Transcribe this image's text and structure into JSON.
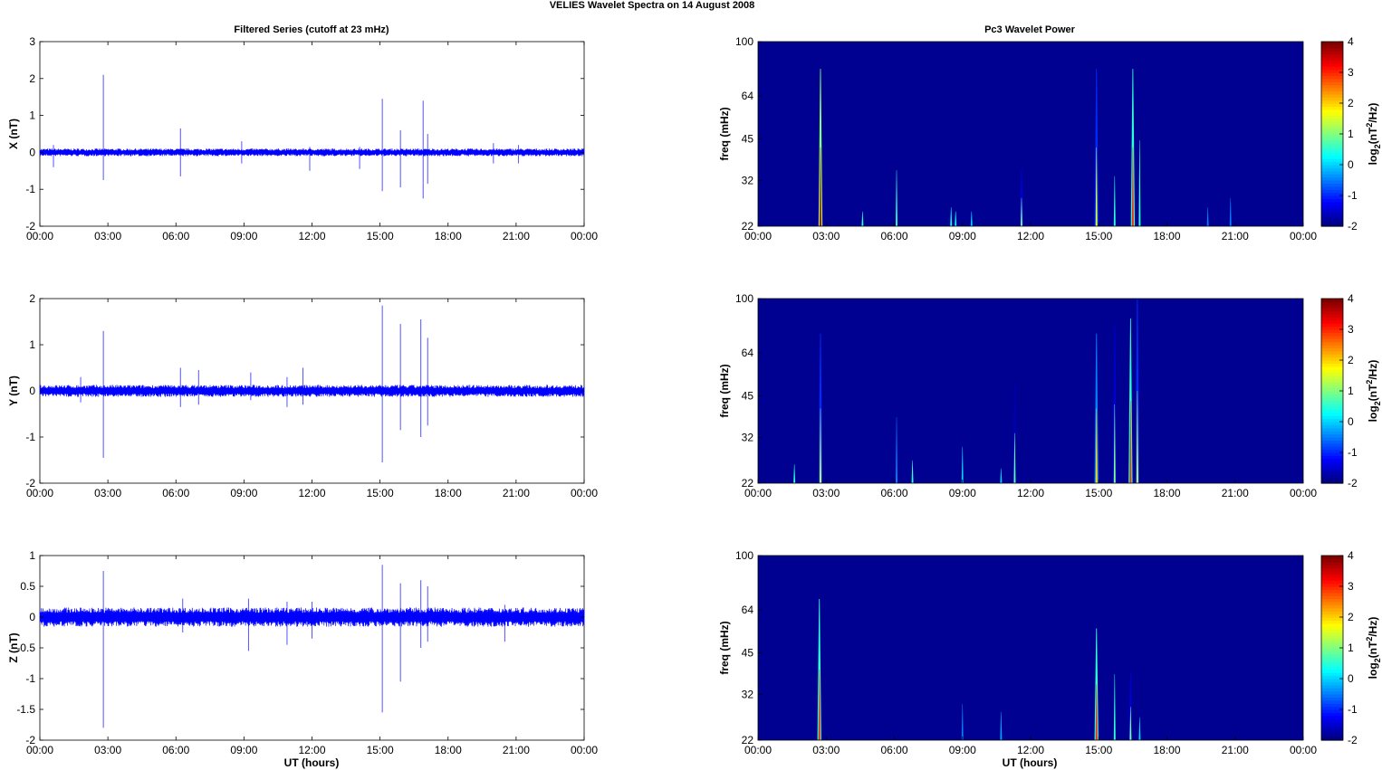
{
  "figure": {
    "title": "VELIES Wavelet Spectra on 14 August    2008",
    "left_title": "Filtered Series (cutoff at 23 mHz)",
    "right_title": "Pc3 Wavelet Power",
    "xlabel": "UT (hours)"
  },
  "chart_data": [
    {
      "type": "line",
      "panel": "X",
      "ylabel": "X (nT)",
      "ylim": [
        -2,
        3
      ],
      "yticks": [
        "-2",
        "-1",
        "0",
        "1",
        "2",
        "3"
      ],
      "xticks": [
        "00:00",
        "03:00",
        "06:00",
        "09:00",
        "12:00",
        "15:00",
        "18:00",
        "21:00",
        "00:00"
      ],
      "xlim_hours": [
        0,
        24
      ],
      "noise_amplitude": 0.08,
      "series_color": "#0000ff",
      "spikes": [
        {
          "t": 2.8,
          "hi": 2.1,
          "lo": -0.75
        },
        {
          "t": 6.2,
          "hi": 0.65,
          "lo": -0.65
        },
        {
          "t": 0.6,
          "hi": 0.2,
          "lo": -0.4
        },
        {
          "t": 11.9,
          "hi": 0.15,
          "lo": -0.5
        },
        {
          "t": 14.1,
          "hi": 0.15,
          "lo": -0.45
        },
        {
          "t": 15.1,
          "hi": 1.45,
          "lo": -1.05
        },
        {
          "t": 15.9,
          "hi": 0.6,
          "lo": -0.95
        },
        {
          "t": 16.9,
          "hi": 1.4,
          "lo": -1.25
        },
        {
          "t": 17.1,
          "hi": 0.5,
          "lo": -0.85
        },
        {
          "t": 20.0,
          "hi": 0.25,
          "lo": -0.3
        },
        {
          "t": 21.1,
          "hi": 0.2,
          "lo": -0.3
        },
        {
          "t": 8.9,
          "hi": 0.3,
          "lo": -0.3
        }
      ]
    },
    {
      "type": "line",
      "panel": "Y",
      "ylabel": "Y (nT)",
      "ylim": [
        -2,
        2
      ],
      "yticks": [
        "-2",
        "-1",
        "0",
        "1",
        "2"
      ],
      "xticks": [
        "00:00",
        "03:00",
        "06:00",
        "09:00",
        "12:00",
        "15:00",
        "18:00",
        "21:00",
        "00:00"
      ],
      "xlim_hours": [
        0,
        24
      ],
      "noise_amplitude": 0.1,
      "series_color": "#0000ff",
      "spikes": [
        {
          "t": 2.8,
          "hi": 1.3,
          "lo": -1.45
        },
        {
          "t": 6.2,
          "hi": 0.5,
          "lo": -0.35
        },
        {
          "t": 7.0,
          "hi": 0.45,
          "lo": -0.3
        },
        {
          "t": 9.3,
          "hi": 0.4,
          "lo": -0.2
        },
        {
          "t": 10.9,
          "hi": 0.3,
          "lo": -0.35
        },
        {
          "t": 11.6,
          "hi": 0.5,
          "lo": -0.3
        },
        {
          "t": 15.1,
          "hi": 1.85,
          "lo": -1.55
        },
        {
          "t": 15.9,
          "hi": 1.45,
          "lo": -0.85
        },
        {
          "t": 16.8,
          "hi": 1.55,
          "lo": -1.0
        },
        {
          "t": 17.1,
          "hi": 1.15,
          "lo": -0.75
        },
        {
          "t": 1.8,
          "hi": 0.3,
          "lo": -0.25
        }
      ]
    },
    {
      "type": "line",
      "panel": "Z",
      "ylabel": "Z (nT)",
      "ylim": [
        -2,
        1
      ],
      "yticks": [
        "-2",
        "-1.5",
        "-1",
        "-0.5",
        "0",
        "0.5",
        "1"
      ],
      "xticks": [
        "00:00",
        "03:00",
        "06:00",
        "09:00",
        "12:00",
        "15:00",
        "18:00",
        "21:00",
        "00:00"
      ],
      "xlim_hours": [
        0,
        24
      ],
      "noise_amplitude": 0.12,
      "series_color": "#0000ff",
      "spikes": [
        {
          "t": 2.8,
          "hi": 0.75,
          "lo": -1.8
        },
        {
          "t": 6.3,
          "hi": 0.3,
          "lo": -0.25
        },
        {
          "t": 9.2,
          "hi": 0.3,
          "lo": -0.55
        },
        {
          "t": 10.9,
          "hi": 0.25,
          "lo": -0.45
        },
        {
          "t": 12.0,
          "hi": 0.25,
          "lo": -0.35
        },
        {
          "t": 15.1,
          "hi": 0.85,
          "lo": -1.55
        },
        {
          "t": 15.9,
          "hi": 0.55,
          "lo": -1.05
        },
        {
          "t": 16.8,
          "hi": 0.6,
          "lo": -0.5
        },
        {
          "t": 17.1,
          "hi": 0.5,
          "lo": -0.4
        },
        {
          "t": 20.5,
          "hi": 0.2,
          "lo": -0.4
        }
      ]
    },
    {
      "type": "heatmap",
      "panel": "X-power",
      "ylabel": "freq (mHz)",
      "yticks": [
        "22",
        "32",
        "45",
        "64",
        "100"
      ],
      "xticks": [
        "00:00",
        "03:00",
        "06:00",
        "09:00",
        "12:00",
        "15:00",
        "18:00",
        "21:00",
        "00:00"
      ],
      "xlim_hours": [
        0,
        24
      ],
      "ylim_mHz": [
        22,
        100
      ],
      "background_level": -1.9,
      "events": [
        {
          "t": 2.75,
          "fmax": 80,
          "peak": 3.5
        },
        {
          "t": 4.6,
          "fmax": 28,
          "peak": 0.5
        },
        {
          "t": 6.1,
          "fmax": 55,
          "peak": 0.5
        },
        {
          "t": 8.5,
          "fmax": 30,
          "peak": 0.3
        },
        {
          "t": 8.7,
          "fmax": 28,
          "peak": 0.3
        },
        {
          "t": 9.4,
          "fmax": 28,
          "peak": 0.0
        },
        {
          "t": 11.6,
          "fmax": 35,
          "peak": 1.0
        },
        {
          "t": 14.9,
          "fmax": 80,
          "peak": 1.5
        },
        {
          "t": 15.7,
          "fmax": 50,
          "peak": 0.5
        },
        {
          "t": 16.5,
          "fmax": 80,
          "peak": 3.0
        },
        {
          "t": 16.8,
          "fmax": 90,
          "peak": 0.5
        },
        {
          "t": 19.8,
          "fmax": 30,
          "peak": -0.5
        },
        {
          "t": 20.8,
          "fmax": 35,
          "peak": -0.5
        }
      ]
    },
    {
      "type": "heatmap",
      "panel": "Y-power",
      "ylabel": "freq (mHz)",
      "yticks": [
        "22",
        "32",
        "45",
        "64",
        "100"
      ],
      "xticks": [
        "00:00",
        "03:00",
        "06:00",
        "09:00",
        "12:00",
        "15:00",
        "18:00",
        "21:00",
        "00:00"
      ],
      "xlim_hours": [
        0,
        24
      ],
      "ylim_mHz": [
        22,
        100
      ],
      "background_level": -1.9,
      "events": [
        {
          "t": 1.6,
          "fmax": 30,
          "peak": 0.5
        },
        {
          "t": 2.75,
          "fmax": 75,
          "peak": 1.5
        },
        {
          "t": 6.1,
          "fmax": 65,
          "peak": -0.5
        },
        {
          "t": 6.8,
          "fmax": 32,
          "peak": 0.5
        },
        {
          "t": 9.0,
          "fmax": 40,
          "peak": 0.0
        },
        {
          "t": 10.7,
          "fmax": 28,
          "peak": 0.0
        },
        {
          "t": 11.3,
          "fmax": 50,
          "peak": 0.8
        },
        {
          "t": 14.9,
          "fmax": 75,
          "peak": 2.0
        },
        {
          "t": 15.7,
          "fmax": 80,
          "peak": 1.0
        },
        {
          "t": 16.4,
          "fmax": 85,
          "peak": 3.0
        },
        {
          "t": 16.7,
          "fmax": 100,
          "peak": 1.5
        }
      ]
    },
    {
      "type": "heatmap",
      "panel": "Z-power",
      "ylabel": "freq (mHz)",
      "yticks": [
        "22",
        "32",
        "45",
        "64",
        "100"
      ],
      "xticks": [
        "00:00",
        "03:00",
        "06:00",
        "09:00",
        "12:00",
        "15:00",
        "18:00",
        "21:00",
        "00:00"
      ],
      "xlim_hours": [
        0,
        24
      ],
      "ylim_mHz": [
        22,
        100
      ],
      "background_level": -1.9,
      "events": [
        {
          "t": 2.7,
          "fmax": 70,
          "peak": 3.0
        },
        {
          "t": 9.0,
          "fmax": 40,
          "peak": -0.5
        },
        {
          "t": 10.7,
          "fmax": 35,
          "peak": -0.3
        },
        {
          "t": 14.9,
          "fmax": 55,
          "peak": 3.0
        },
        {
          "t": 15.7,
          "fmax": 65,
          "peak": 0.5
        },
        {
          "t": 16.4,
          "fmax": 38,
          "peak": 1.0
        },
        {
          "t": 16.8,
          "fmax": 32,
          "peak": 0.0
        }
      ]
    }
  ],
  "colorbar": {
    "label": "log",
    "label_sub": "2",
    "label_open": "(nT",
    "label_sup": "2",
    "label_close": "/Hz)",
    "range": [
      -2,
      4
    ],
    "ticks": [
      "-2",
      "-1",
      "0",
      "1",
      "2",
      "3",
      "4"
    ],
    "colormap": "jet"
  }
}
